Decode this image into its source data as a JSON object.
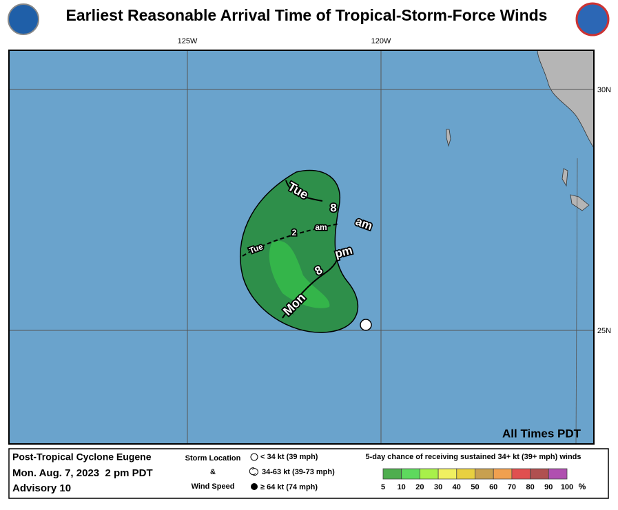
{
  "header": {
    "title": "Earliest Reasonable Arrival Time of Tropical-Storm-Force Winds"
  },
  "map": {
    "lon_labels": [
      "125W",
      "120W"
    ],
    "lat_labels": [
      "30N",
      "25N"
    ],
    "contour_labels": [
      "Tue",
      "8",
      "am",
      "Tue",
      "2",
      "am",
      "pm",
      "8",
      "Mon"
    ],
    "time_note": "All Times PDT"
  },
  "footer": {
    "storm": "Post-Tropical Cyclone Eugene",
    "date": "Mon. Aug. 7, 2023  2 pm PDT",
    "advisory": "Advisory 10",
    "location_title": [
      "Storm Location",
      "&",
      "Wind Speed"
    ],
    "location_items": [
      "< 34 kt (39 mph)",
      "34-63 kt (39-73 mph)",
      "≥ 64 kt (74 mph)"
    ],
    "scale_title": "5-day chance of receiving sustained 34+ kt (39+ mph) winds",
    "scale_labels": [
      "5",
      "10",
      "20",
      "30",
      "40",
      "50",
      "60",
      "70",
      "80",
      "90",
      "100"
    ],
    "scale_unit": "%",
    "scale_colors": [
      "#4fae4f",
      "#5ed95e",
      "#a8f04a",
      "#f0f060",
      "#e8d040",
      "#c8a050",
      "#f0a050",
      "#e05050",
      "#b05050",
      "#b050b0"
    ]
  }
}
